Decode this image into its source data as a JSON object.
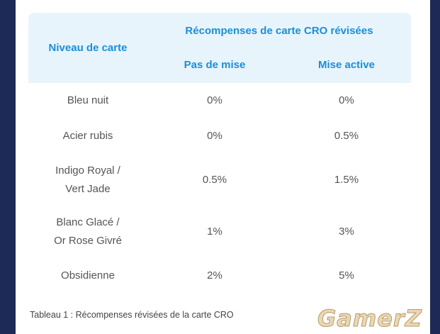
{
  "table": {
    "header": {
      "level_label": "Niveau de carte",
      "group_label": "Récompenses de carte CRO révisées",
      "col_no_stake": "Pas de mise",
      "col_active_stake": "Mise active"
    },
    "rows": [
      {
        "level_line1": "Bleu nuit",
        "level_line2": "",
        "no_stake": "0%",
        "active_stake": "0%"
      },
      {
        "level_line1": "Acier rubis",
        "level_line2": "",
        "no_stake": "0%",
        "active_stake": "0.5%"
      },
      {
        "level_line1": "Indigo Royal /",
        "level_line2": "Vert Jade",
        "no_stake": "0.5%",
        "active_stake": "1.5%"
      },
      {
        "level_line1": "Blanc Glacé /",
        "level_line2": "Or Rose Givré",
        "no_stake": "1%",
        "active_stake": "3%"
      },
      {
        "level_line1": "Obsidienne",
        "level_line2": "",
        "no_stake": "2%",
        "active_stake": "5%"
      }
    ]
  },
  "caption": "Tableau 1 : Récompenses révisées de la carte CRO",
  "watermark": "GamerZ",
  "colors": {
    "header_text": "#1a8fd8",
    "header_bg": "#e8f4fc",
    "page_border": "#1e2a55"
  }
}
